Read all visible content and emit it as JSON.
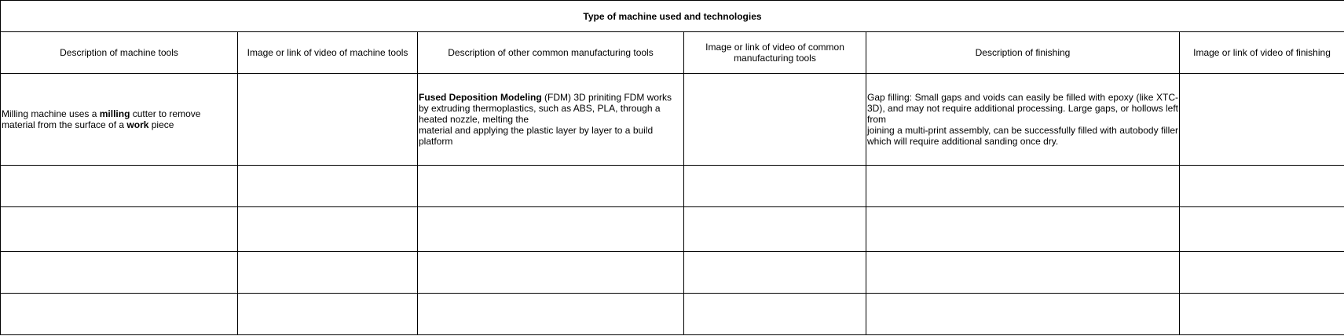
{
  "table": {
    "title": "Type of machine used and technologies",
    "headers": [
      "Description of machine tools",
      "Image or link of video of machine tools",
      "Description of other common manufacturing tools",
      "Image or link of video of common manufacturing tools",
      "Description of finishing",
      "Image or link of video of finishing"
    ],
    "row1": {
      "machine": {
        "part1": "Milling machine uses a ",
        "bold1": "milling",
        "part2": " cutter to remove material from the surface of a ",
        "bold2": "work",
        "part3": " piece"
      },
      "machine_media": "",
      "common": {
        "bold1": "Fused Deposition Modeling",
        "part1": "  (FDM) 3D priniting FDM works by extruding thermoplastics, such as ABS, PLA, through a heated nozzle, melting the",
        "part2": "material and applying the plastic layer by layer to a build platform"
      },
      "common_media": "",
      "finishing": {
        "part1": "Gap filling: Small gaps and voids can easily be filled with epoxy (like XTC-3D), and may not require additional processing. Large gaps, or hollows left from",
        "part2": "joining a multi-print assembly, can be successfully filled with autobody filler which will require additional sanding once dry."
      },
      "finishing_media": ""
    },
    "empty_rows": 4
  }
}
